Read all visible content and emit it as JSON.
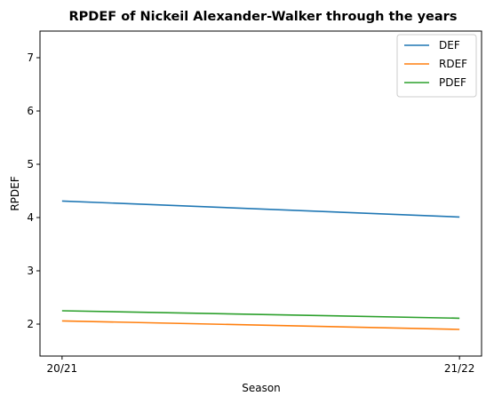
{
  "chart_data": {
    "type": "line",
    "title": "RPDEF of Nickeil Alexander-Walker through the years",
    "xlabel": "Season",
    "ylabel": "RPDEF",
    "categories": [
      "20/21",
      "21/22"
    ],
    "ylim": [
      1.4,
      7.5
    ],
    "yticks": [
      "2",
      "3",
      "4",
      "5",
      "6",
      "7"
    ],
    "grid": false,
    "legend_position": "top-right",
    "series": [
      {
        "name": "DEF",
        "values": [
          4.31,
          4.01
        ],
        "color": "#1f77b4"
      },
      {
        "name": "RDEF",
        "values": [
          2.06,
          1.9
        ],
        "color": "#ff7f0e"
      },
      {
        "name": "PDEF",
        "values": [
          2.25,
          2.11
        ],
        "color": "#2ca02c"
      }
    ]
  }
}
